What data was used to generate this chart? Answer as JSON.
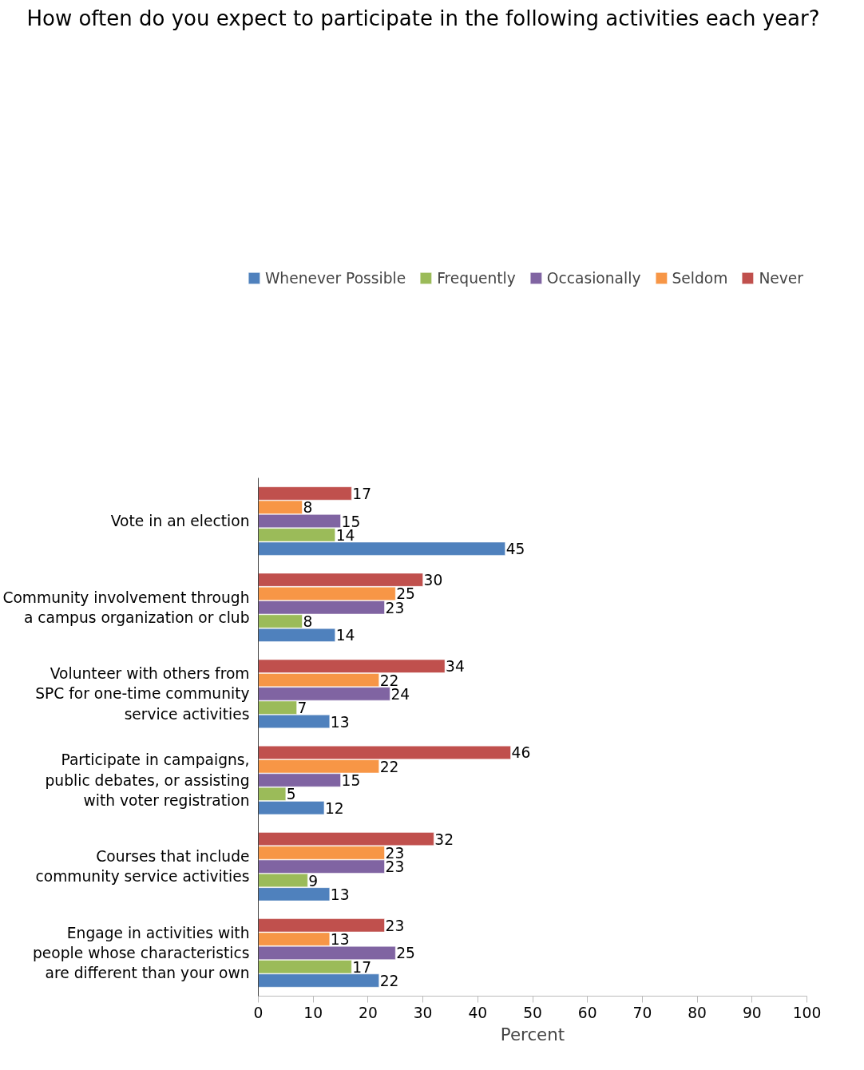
{
  "chart_data": {
    "type": "bar",
    "orientation": "horizontal",
    "title": "How often do you expect to participate in the following activities each year?",
    "xlabel": "Percent",
    "categories": [
      "Vote in an election",
      "Community involvement through a campus organization or club",
      "Volunteer with others from SPC for one-time community service activities",
      "Participate in campaigns, public debates, or assisting with voter registration",
      "Courses that include community service activities",
      "Engage in activities with people whose characteristics are different than your own"
    ],
    "series": [
      {
        "name": "Whenever Possible",
        "color": "#4f81bd",
        "values": [
          45,
          14,
          13,
          12,
          13,
          22
        ]
      },
      {
        "name": "Frequently",
        "color": "#9bbb59",
        "values": [
          14,
          8,
          7,
          5,
          9,
          17
        ]
      },
      {
        "name": "Occasionally",
        "color": "#8064a2",
        "values": [
          15,
          23,
          24,
          15,
          23,
          25
        ]
      },
      {
        "name": "Seldom",
        "color": "#f79646",
        "values": [
          8,
          25,
          22,
          22,
          23,
          13
        ]
      },
      {
        "name": "Never",
        "color": "#c0504d",
        "values": [
          17,
          30,
          34,
          46,
          32,
          23
        ]
      }
    ],
    "xlim": [
      0,
      100
    ],
    "xticks": [
      0,
      10,
      20,
      30,
      40,
      50,
      60,
      70,
      80,
      90,
      100
    ],
    "data_labels": true,
    "grid": false,
    "legend": "top"
  }
}
